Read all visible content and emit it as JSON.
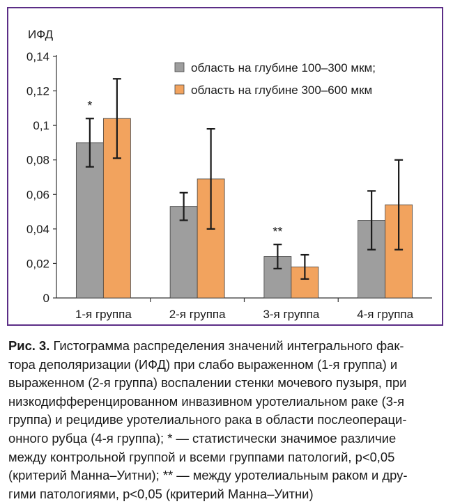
{
  "chart_data": {
    "type": "bar",
    "ylabel": "ИФД",
    "ylim": [
      0,
      0.14
    ],
    "yticks": [
      "0",
      "0,02",
      "0,04",
      "0,06",
      "0,08",
      "0,1",
      "0,12",
      "0,14"
    ],
    "categories": [
      "1-я группа",
      "2-я группа",
      "3-я группа",
      "4-я группа"
    ],
    "series": [
      {
        "name": "область на глубине 100–300 мкм;",
        "color": "#9e9e9e",
        "values": [
          0.09,
          0.053,
          0.024,
          0.045
        ],
        "errors": [
          0.014,
          0.008,
          0.007,
          0.017
        ]
      },
      {
        "name": "область на глубине 300–600 мкм",
        "color": "#f2a35e",
        "values": [
          0.104,
          0.069,
          0.018,
          0.054
        ],
        "errors": [
          0.023,
          0.029,
          0.007,
          0.026
        ]
      }
    ],
    "annotations": [
      {
        "text": "*",
        "category_index": 0
      },
      {
        "text": "**",
        "category_index": 2
      }
    ],
    "grid": false,
    "legend_position": "top-right"
  },
  "caption": {
    "label": "Рис. 3.",
    "lines": [
      "Гистограмма распределения значений интегрального фак-",
      "тора деполяризации (ИФД) при слабо выраженном (1-я группа) и",
      "выраженном (2-я группа) воспалении стенки мочевого пузыря, при",
      "низкодифференцированном инвазивном уротелиальном раке (3-я",
      "группа) и рецидиве уротелиального рака в области послеопераци-",
      "онного рубца (4-я группа); * — статистически значимое различие",
      "между контрольной группой и всеми группами патологий, р<0,05",
      "(критерий Манна–Уитни); ** — между уротелиальным раком и дру-",
      "гими патологиями, р<0,05 (критерий Манна–Уитни)"
    ]
  }
}
